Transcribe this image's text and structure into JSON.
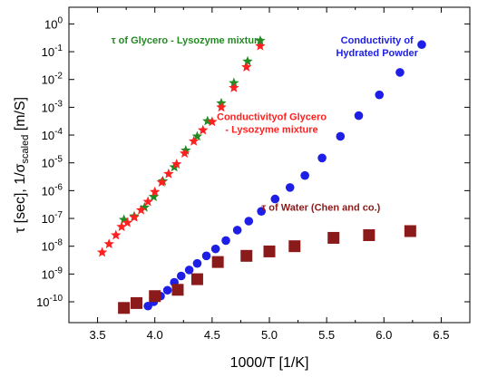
{
  "chart_data": {
    "type": "scatter",
    "xlabel": "1000/T  [1/K]",
    "ylabel": {
      "prefix": "τ  [sec], 1/σ",
      "subscript": "scaled",
      "suffix": " [m/S]"
    },
    "xlim": [
      3.25,
      6.75
    ],
    "ylim_log10": [
      -10.75,
      0.6
    ],
    "x_ticks": [
      3.5,
      4.0,
      4.5,
      5.0,
      5.5,
      6.0,
      6.5
    ],
    "x_tick_labels": [
      "3.5",
      "4.0",
      "4.5",
      "5.0",
      "5.5",
      "6.0",
      "6.5"
    ],
    "y_tick_exponents": [
      -10,
      -9,
      -8,
      -7,
      -6,
      -5,
      -4,
      -3,
      -2,
      -1,
      0
    ],
    "y_tick_base": "10",
    "grid": false,
    "legend": "none",
    "series": [
      {
        "name": "τ of Glycero - Lysozyme mixture",
        "marker": "star",
        "color": "#228B22",
        "x": [
          3.73,
          3.82,
          3.91,
          3.99,
          4.07,
          4.17,
          4.27,
          4.37,
          4.46,
          4.58,
          4.69,
          4.81,
          4.92
        ],
        "y": [
          9e-08,
          1.2e-07,
          2.5e-07,
          6e-07,
          2.2e-06,
          7e-06,
          2.8e-05,
          9e-05,
          0.00032,
          0.0014,
          0.0075,
          0.045,
          0.25
        ]
      },
      {
        "name": "Conductivityof Glycero - Lysozyme mixture",
        "marker": "star",
        "color": "#FF2020",
        "x": [
          3.54,
          3.6,
          3.66,
          3.71,
          3.76,
          3.82,
          3.88,
          3.94,
          4.0,
          4.06,
          4.12,
          4.19,
          4.26,
          4.34,
          4.42,
          4.5,
          4.58,
          4.69,
          4.8,
          4.92
        ],
        "y": [
          6e-09,
          1.2e-08,
          2.5e-08,
          5e-08,
          7e-08,
          1.1e-07,
          2e-07,
          4e-07,
          9e-07,
          2e-06,
          4e-06,
          9e-06,
          2.2e-05,
          6e-05,
          0.00015,
          0.0003,
          0.001,
          0.005,
          0.028,
          0.16
        ]
      },
      {
        "name": "Conductivity of Hydrated Powder",
        "marker": "circle",
        "color": "#1E1EE6",
        "x": [
          3.94,
          3.99,
          4.05,
          4.11,
          4.17,
          4.23,
          4.3,
          4.37,
          4.45,
          4.53,
          4.62,
          4.72,
          4.82,
          4.93,
          5.05,
          5.18,
          5.31,
          5.46,
          5.62,
          5.78,
          5.96,
          6.14,
          6.33
        ],
        "y": [
          7e-11,
          1e-10,
          1.6e-10,
          2.6e-10,
          5e-10,
          8.5e-10,
          1.4e-09,
          2.4e-09,
          4.5e-09,
          8e-09,
          1.6e-08,
          3.8e-08,
          8e-08,
          1.8e-07,
          5e-07,
          1.3e-06,
          3.5e-06,
          1.5e-05,
          9e-05,
          0.0005,
          0.0028,
          0.018,
          0.18
        ]
      },
      {
        "name": "τ of Water (Chen and co.)",
        "marker": "square",
        "color": "#8B1A1A",
        "x": [
          3.73,
          3.84,
          4.0,
          4.2,
          4.37,
          4.55,
          4.8,
          5.0,
          5.22,
          5.56,
          5.87,
          6.23
        ],
        "y": [
          6e-11,
          9e-11,
          1.6e-10,
          2.7e-10,
          6.5e-10,
          2.7e-09,
          4.5e-09,
          6.5e-09,
          1e-08,
          2e-08,
          2.5e-08,
          3.5e-08
        ]
      }
    ],
    "annotations": [
      {
        "lines": [
          "τ of Glycero - Lysozyme mixture"
        ],
        "color": "#228B22",
        "x": 3.62,
        "y": 0.2,
        "anchor": "start"
      },
      {
        "lines": [
          "Conductivity of",
          "Hydrated Powder"
        ],
        "color": "#1E1EE6",
        "x": 5.94,
        "y": 0.2,
        "anchor": "middle"
      },
      {
        "lines": [
          "Conductivityof Glycero",
          "- Lysozyme mixture"
        ],
        "color": "#FF2020",
        "x": 5.02,
        "y": 0.00035,
        "anchor": "middle"
      },
      {
        "lines": [
          "τ of Water (Chen and co.)"
        ],
        "color": "#8B1A1A",
        "x": 5.45,
        "y": 1.9e-07,
        "anchor": "middle"
      }
    ]
  }
}
